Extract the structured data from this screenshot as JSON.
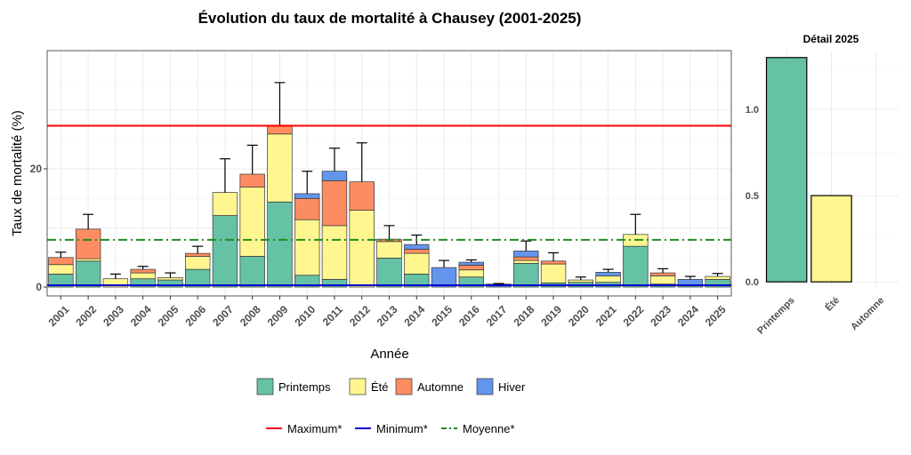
{
  "chart_data": [
    {
      "type": "bar",
      "stacked": true,
      "title": "Évolution du taux de mortalité à Chausey (2001-2025)",
      "xlabel": "Année",
      "ylabel": "Taux de mortalité (%)",
      "ylim": [
        -1.5,
        40.0
      ],
      "yticks": [
        0,
        20
      ],
      "grid": true,
      "categories": [
        "2001",
        "2002",
        "2003",
        "2004",
        "2005",
        "2006",
        "2007",
        "2008",
        "2009",
        "2010",
        "2011",
        "2012",
        "2013",
        "2014",
        "2015",
        "2016",
        "2017",
        "2018",
        "2019",
        "2020",
        "2021",
        "2022",
        "2023",
        "2024",
        "2025"
      ],
      "series": [
        {
          "name": "Printemps",
          "color": "#66C2A5",
          "values": [
            2.2,
            4.4,
            0.0,
            1.4,
            1.2,
            3.0,
            12.1,
            5.2,
            14.4,
            2.0,
            1.3,
            0.0,
            4.9,
            2.2,
            0.0,
            1.7,
            0.0,
            4.0,
            0.7,
            0.8,
            0.8,
            6.9,
            0.5,
            0.4,
            1.3
          ]
        },
        {
          "name": "Été",
          "color": "#FFF68F",
          "values": [
            1.6,
            0.4,
            1.4,
            1.0,
            0.4,
            2.2,
            3.9,
            11.7,
            11.5,
            9.4,
            9.1,
            13.0,
            2.8,
            3.5,
            0.0,
            1.2,
            0.0,
            0.5,
            3.2,
            0.4,
            1.1,
            2.0,
            1.4,
            0.0,
            0.5
          ]
        },
        {
          "name": "Automne",
          "color": "#FC8D62",
          "values": [
            1.2,
            5.0,
            0.0,
            0.6,
            0.0,
            0.5,
            0.0,
            2.2,
            1.5,
            3.6,
            7.6,
            4.8,
            0.4,
            0.7,
            0.0,
            0.8,
            0.0,
            0.6,
            0.5,
            0.0,
            0.0,
            0.0,
            0.5,
            0.0,
            0.0
          ]
        },
        {
          "name": "Hiver",
          "color": "#6495ED",
          "values": [
            0.0,
            0.0,
            0.0,
            0.0,
            0.0,
            0.0,
            0.0,
            0.0,
            0.0,
            0.8,
            1.6,
            0.0,
            0.0,
            0.8,
            3.3,
            0.5,
            0.5,
            1.0,
            0.0,
            0.0,
            0.6,
            0.0,
            0.0,
            0.9,
            0.0
          ]
        }
      ],
      "error_bar_tops": [
        5.9,
        12.3,
        2.2,
        3.5,
        2.4,
        6.9,
        21.7,
        24.0,
        34.6,
        19.6,
        23.5,
        24.4,
        10.4,
        8.8,
        4.5,
        4.6,
        0.6,
        7.8,
        5.8,
        1.7,
        3.0,
        12.3,
        3.1,
        1.8,
        2.3
      ],
      "reference_lines": [
        {
          "name": "Maximum*",
          "value": 27.3,
          "color": "#FF0000",
          "style": "solid"
        },
        {
          "name": "Minimum*",
          "value": 0.3,
          "color": "#0000CD",
          "style": "solid"
        },
        {
          "name": "Moyenne*",
          "value": 8.0,
          "color": "#228B22",
          "style": "dotdash"
        }
      ],
      "legend_position": "bottom"
    },
    {
      "type": "bar",
      "title": "Détail 2025",
      "categories": [
        "Printemps",
        "Été",
        "Automne"
      ],
      "values": [
        1.3,
        0.5,
        0.0
      ],
      "colors": [
        "#66C2A5",
        "#FFF68F",
        "#FC8D62"
      ],
      "ylim": [
        -0.03,
        1.34
      ],
      "yticks": [
        "0.0",
        "0.5",
        "1.0"
      ],
      "grid": true
    }
  ]
}
